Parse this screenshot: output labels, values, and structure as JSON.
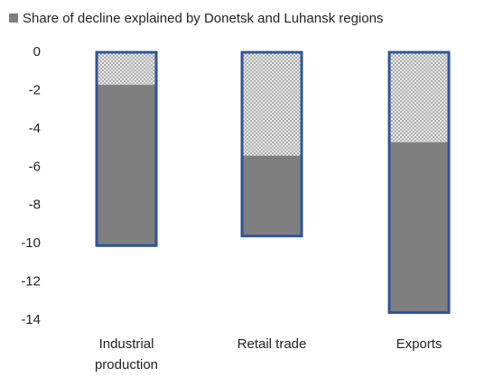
{
  "chart_data": {
    "type": "stacked_bar",
    "categories": [
      "Industrial production",
      "Retail trade",
      "Exports"
    ],
    "series": [
      {
        "values": [
          -1.7,
          -5.4,
          -4.7
        ],
        "color": "#d9d9d9",
        "pattern": "crosshatch"
      },
      {
        "name": "Share of decline explained by Donetsk and Luhansk regions",
        "values": [
          -8.4,
          -4.2,
          -8.9
        ],
        "color": "#7f7f7f"
      }
    ],
    "border_color": "#2f5597",
    "ylim": [
      -14,
      0
    ],
    "yticks": [
      0,
      -2,
      -4,
      -6,
      -8,
      -10,
      -12,
      -14
    ],
    "grid": false,
    "legend": "top"
  }
}
